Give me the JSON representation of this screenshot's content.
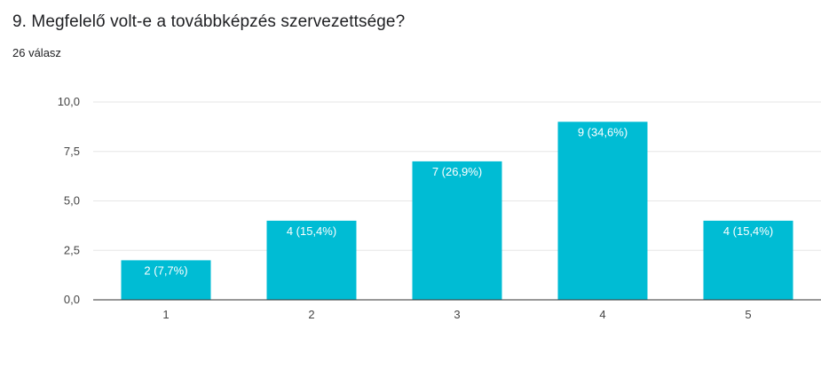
{
  "question": {
    "title": "9. Megfelelő volt-e a továbbképzés szervezettsége?",
    "response_count": "26 válasz"
  },
  "colors": {
    "bar": "#00BCD4",
    "grid": "#e6e6e6",
    "axis": "#333333"
  },
  "chart_data": {
    "type": "bar",
    "categories": [
      "1",
      "2",
      "3",
      "4",
      "5"
    ],
    "values": [
      2,
      4,
      7,
      9,
      4
    ],
    "data_labels": [
      "2 (7,7%)",
      "4 (15,4%)",
      "7 (26,9%)",
      "9 (34,6%)",
      "4 (15,4%)"
    ],
    "ylim": [
      0,
      10
    ],
    "yticks": [
      0,
      2.5,
      5,
      7.5,
      10
    ],
    "ytick_labels": [
      "0,0",
      "2,5",
      "5,0",
      "7,5",
      "10,0"
    ],
    "grid": true,
    "legend": "none"
  }
}
